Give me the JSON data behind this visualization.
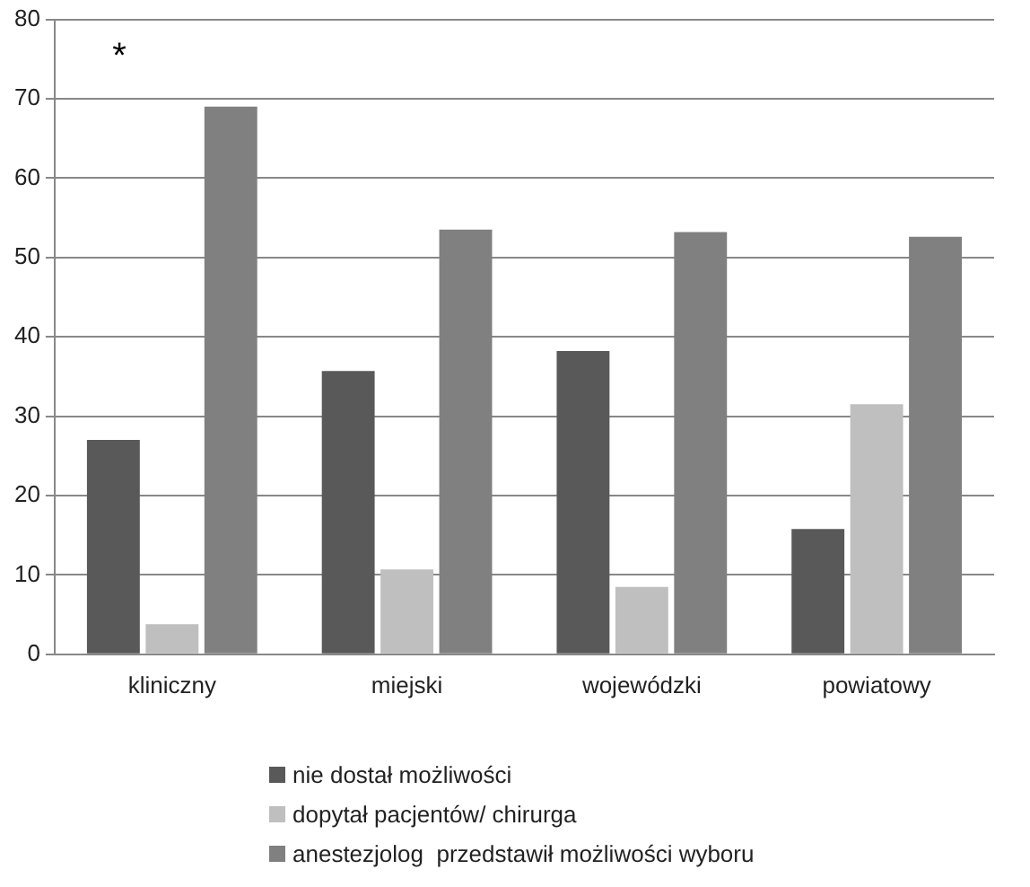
{
  "chart_data": {
    "type": "bar",
    "categories": [
      "kliniczny",
      "miejski",
      "wojewódzki",
      "powiatowy"
    ],
    "series": [
      {
        "name": "nie dostał możliwości",
        "color": "#595959",
        "values": [
          27.0,
          35.7,
          38.2,
          15.8
        ]
      },
      {
        "name": "dopytał pacjentów/ chirurga",
        "color": "#bfbfbf",
        "values": [
          3.8,
          10.7,
          8.5,
          31.5
        ]
      },
      {
        "name": "anestezjolog  przedstawił możliwości wyboru",
        "color": "#808080",
        "values": [
          69.0,
          53.5,
          53.2,
          52.6
        ]
      }
    ],
    "ylim": [
      0,
      80
    ],
    "yticks": [
      0,
      10,
      20,
      30,
      40,
      50,
      60,
      70,
      80
    ],
    "grid": "y",
    "legend": "bottom",
    "annotations": [
      "*"
    ]
  }
}
